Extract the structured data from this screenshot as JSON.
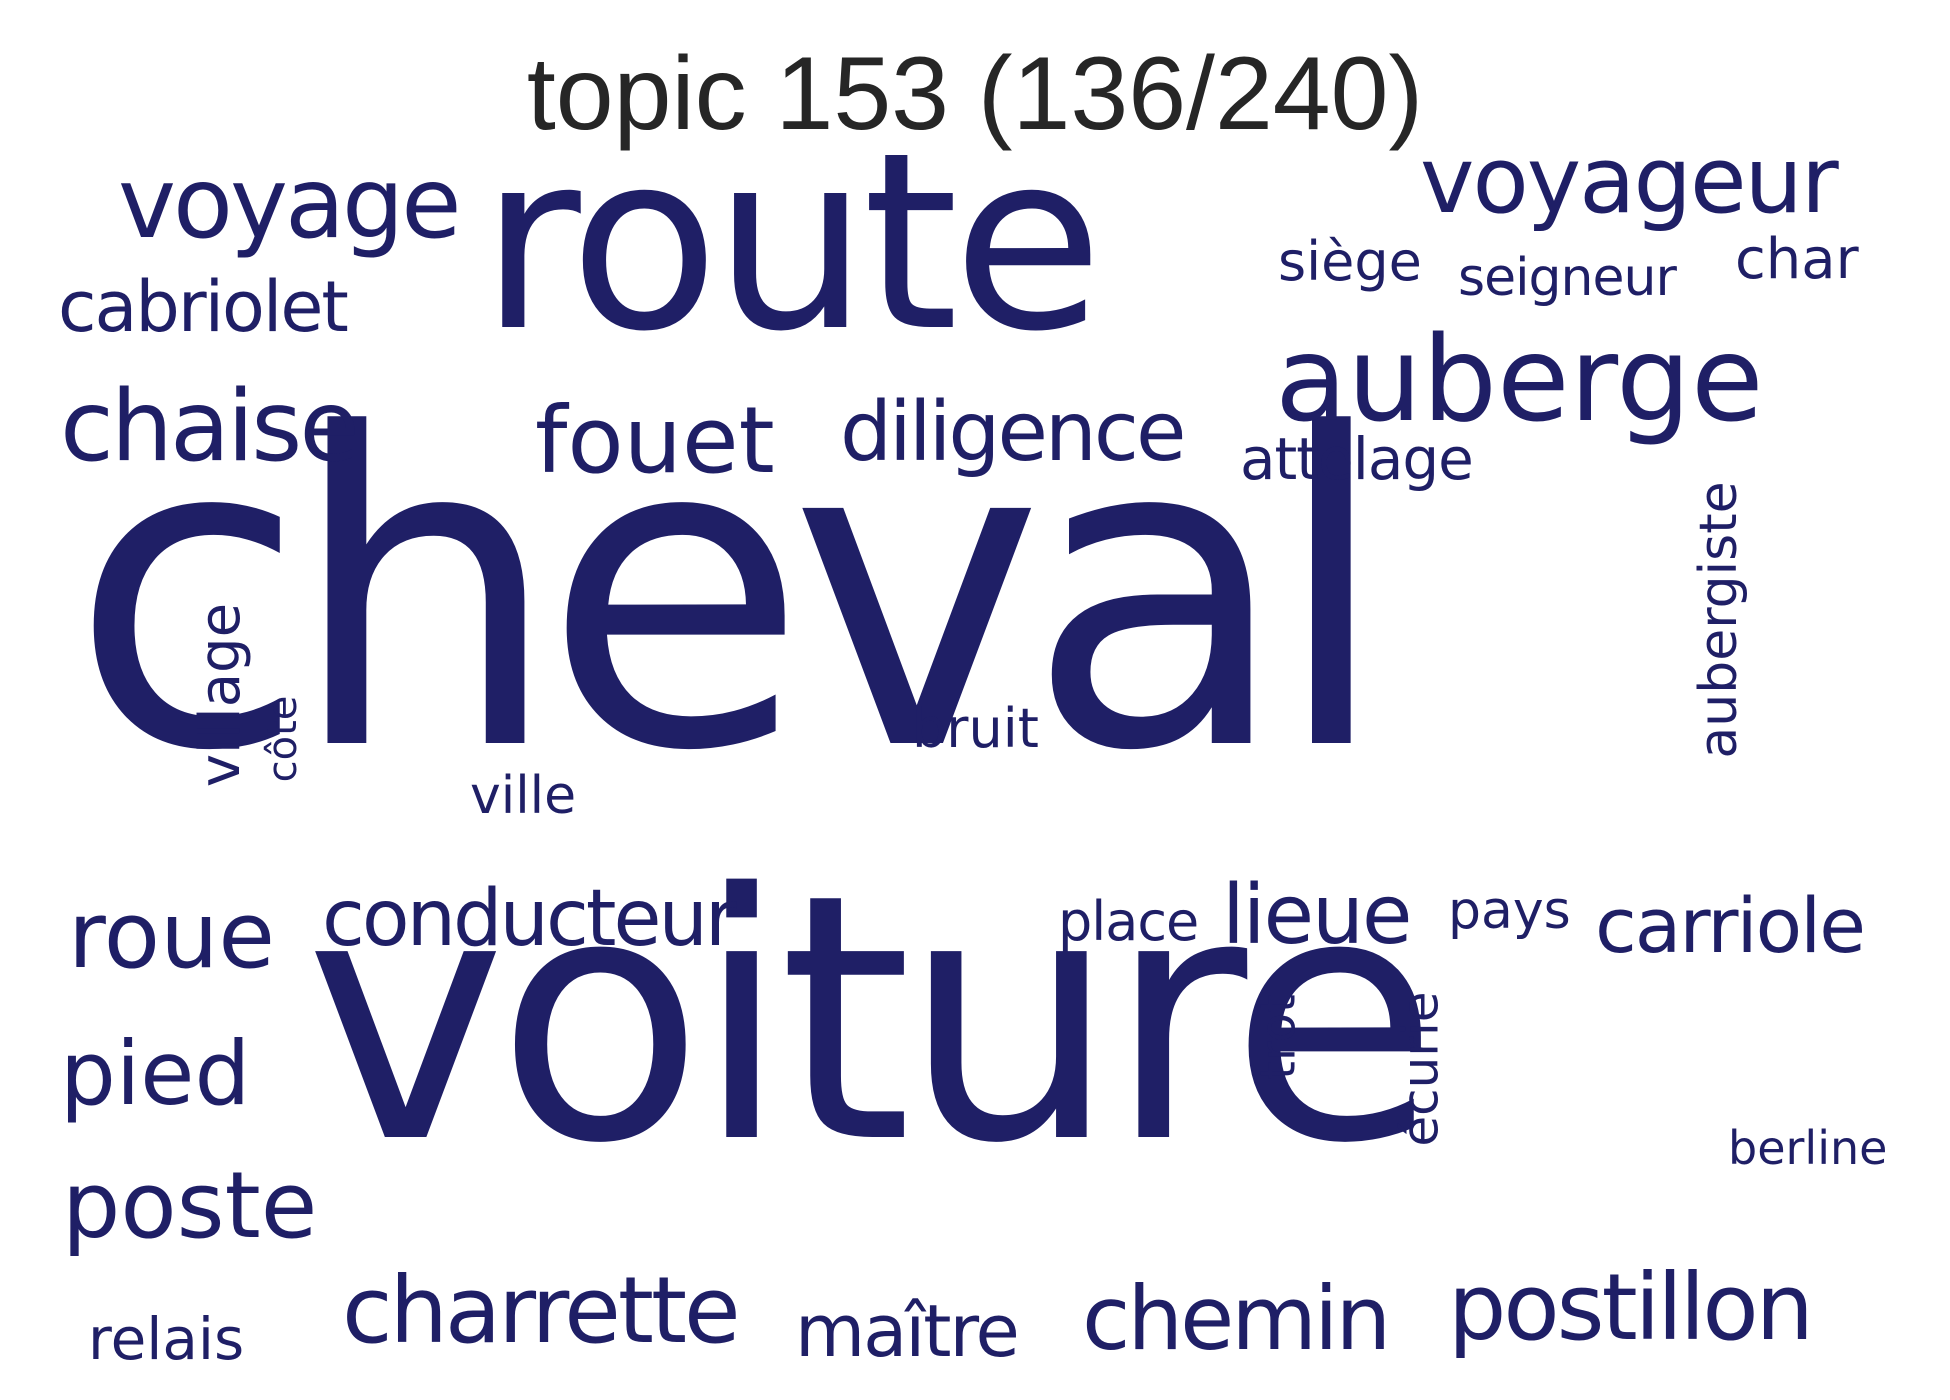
{
  "title": "topic 153 (136/240)",
  "color": "#1f1f66",
  "words": {
    "cheval": "cheval",
    "voiture": "voiture",
    "route": "route",
    "auberge": "auberge",
    "voyageur": "voyageur",
    "voyage": "voyage",
    "cabriolet": "cabriolet",
    "chaise": "chaise",
    "fouet": "fouet",
    "diligence": "diligence",
    "attelage": "attelage",
    "siege": "siège",
    "seigneur": "seigneur",
    "char": "char",
    "aubergiste": "aubergiste",
    "village": "village",
    "cote": "côte",
    "ville": "ville",
    "bruit": "bruit",
    "roue": "roue",
    "conducteur": "conducteur",
    "place": "place",
    "lieue": "lieue",
    "pays": "pays",
    "carriole": "carriole",
    "pied": "pied",
    "trot": "trot",
    "ecurie": "écurie",
    "berline": "berline",
    "poste": "poste",
    "charrette": "charrette",
    "maitre": "maître",
    "chemin": "chemin",
    "postillon": "postillon",
    "relais": "relais"
  }
}
